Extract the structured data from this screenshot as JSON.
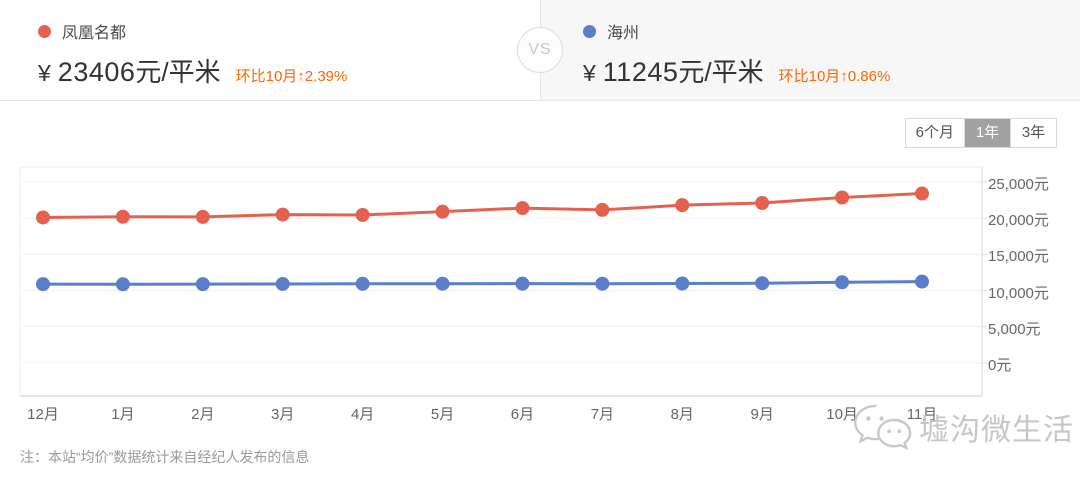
{
  "header": {
    "vs_label": "VS",
    "left": {
      "name": "凤凰名都",
      "currency": "¥",
      "price": "23406",
      "unit": "元/平米",
      "change": "环比10月↑2.39%",
      "dot_color": "#e5614f"
    },
    "right": {
      "name": "海州",
      "currency": "¥",
      "price": "11245",
      "unit": "元/平米",
      "change": "环比10月↑0.86%",
      "dot_color": "#5b7ec8"
    }
  },
  "chart": {
    "range_tabs": [
      {
        "label": "6个月",
        "selected": false
      },
      {
        "label": "1年",
        "selected": true
      },
      {
        "label": "3年",
        "selected": false
      }
    ]
  },
  "chart_data": {
    "type": "line",
    "x": [
      "12月",
      "1月",
      "2月",
      "3月",
      "4月",
      "5月",
      "6月",
      "7月",
      "8月",
      "9月",
      "10月",
      "11月"
    ],
    "series": [
      {
        "name": "凤凰名都",
        "color": "#e5614f",
        "values": [
          20100,
          20200,
          20180,
          20500,
          20450,
          20900,
          21400,
          21150,
          21800,
          22100,
          22859,
          23406
        ]
      },
      {
        "name": "海州",
        "color": "#5b7ec8",
        "values": [
          10900,
          10870,
          10890,
          10920,
          10940,
          10950,
          10960,
          10950,
          10980,
          11020,
          11149,
          11245
        ]
      }
    ],
    "ylim": [
      0,
      25000
    ],
    "y_ticks": [
      {
        "value": 0,
        "label": "0元"
      },
      {
        "value": 5000,
        "label": "5,000元"
      },
      {
        "value": 10000,
        "label": "10,000元"
      },
      {
        "value": 15000,
        "label": "15,000元"
      },
      {
        "value": 20000,
        "label": "20,000元"
      },
      {
        "value": 25000,
        "label": "25,000元"
      }
    ],
    "grid": true,
    "y_axis_side": "right",
    "legend_position": "none",
    "title": ""
  },
  "note": "注：本站“均价”数据统计来自经纪人发布的信息",
  "watermark": {
    "icon": "wechat-icon",
    "text": "墟沟微生活"
  },
  "colors": {
    "accent_orange": "#ff6600",
    "series_red": "#e5614f",
    "series_blue": "#5b7ec8",
    "selected_tab_bg": "#a1a1a1",
    "right_panel_bg": "#f7f7f7",
    "grid_line": "#f1f1f1",
    "axis_line": "#cfcfcf",
    "text_dark": "#333333",
    "text_gray": "#666666",
    "note_gray": "#999999",
    "watermark_gray": "#c6c6c6"
  }
}
